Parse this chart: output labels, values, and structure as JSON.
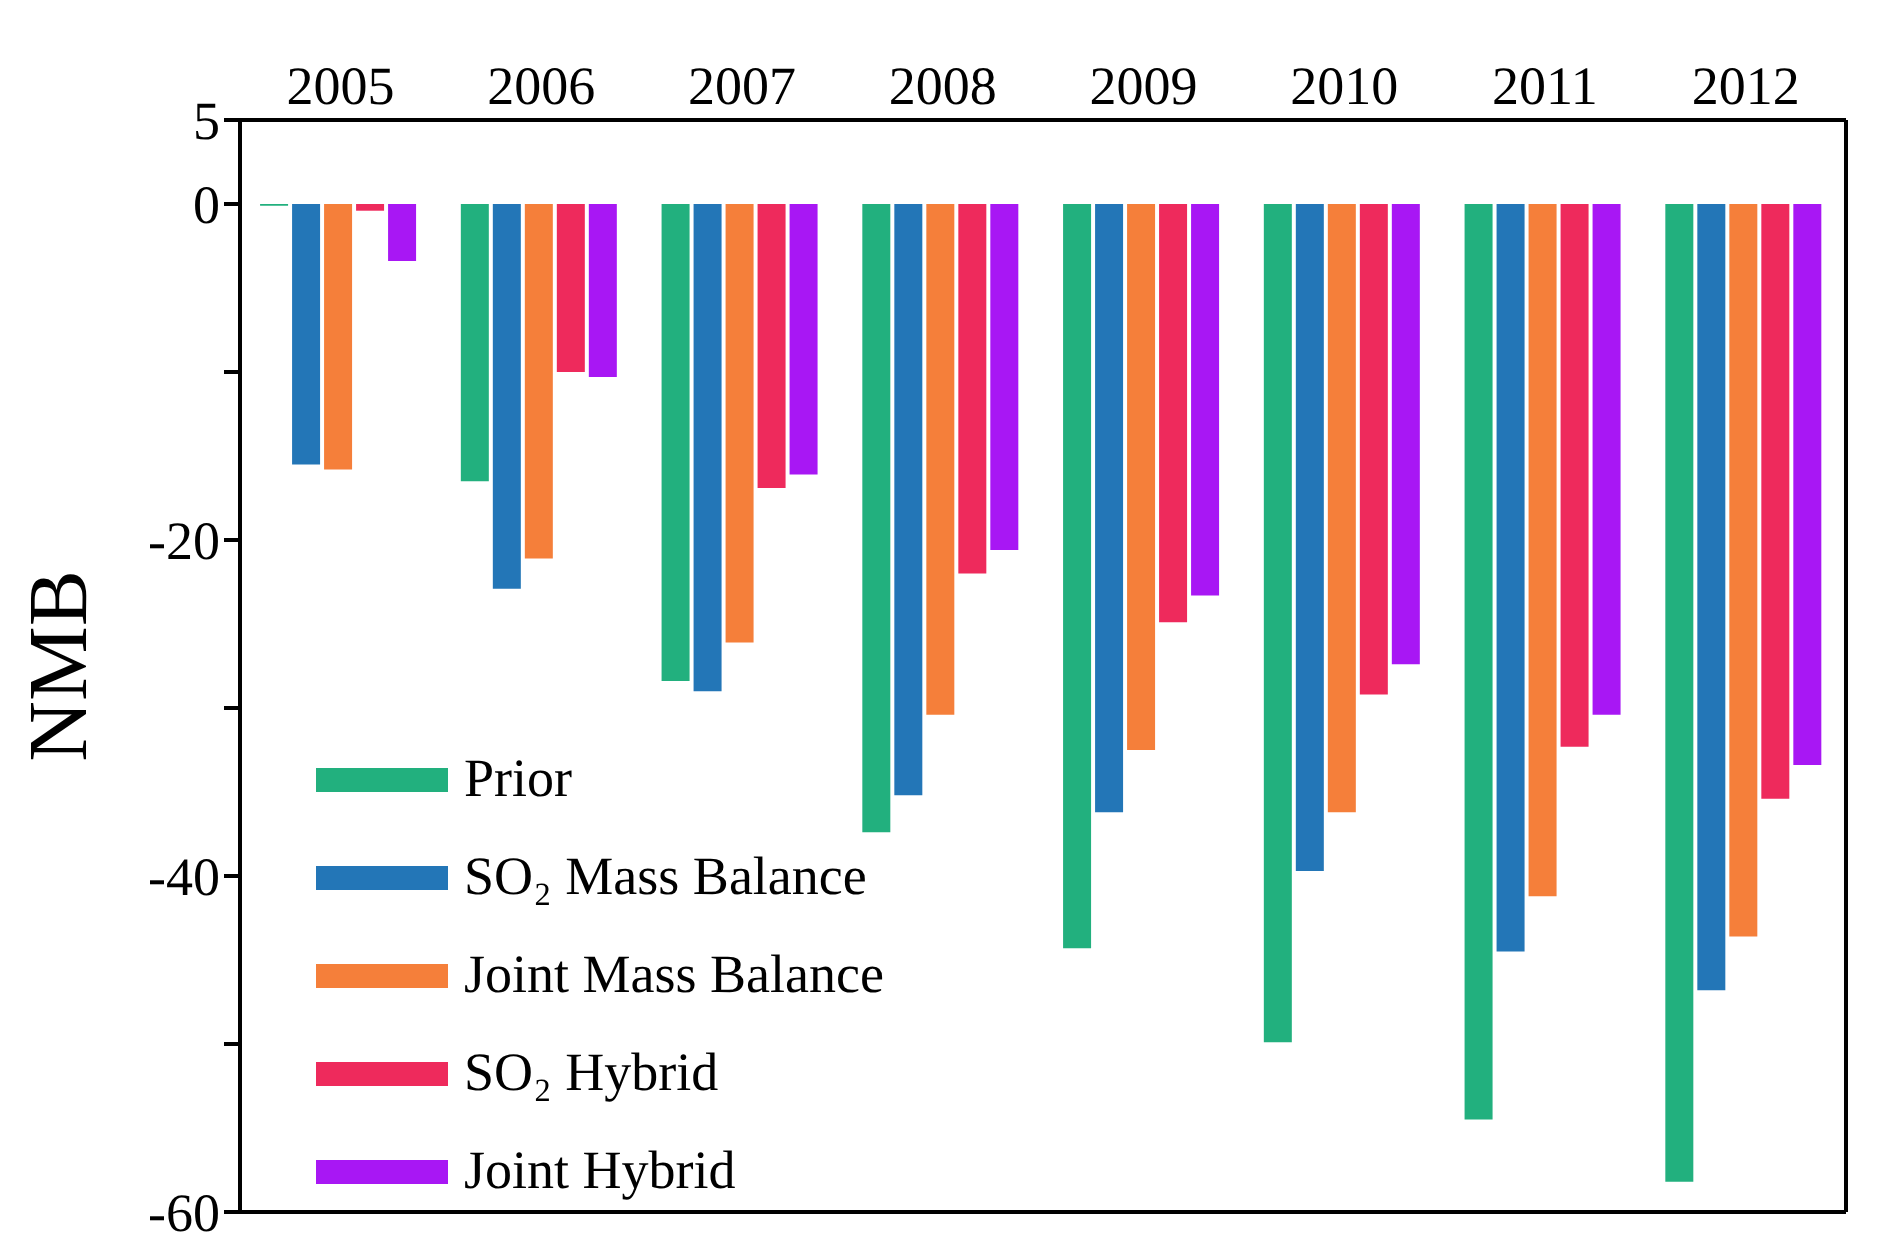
{
  "chart_data": {
    "type": "bar",
    "ylabel": "NMB",
    "categories": [
      "2005",
      "2006",
      "2007",
      "2008",
      "2009",
      "2010",
      "2011",
      "2012"
    ],
    "series": [
      {
        "name": "Prior",
        "color": "#22b07e",
        "values": [
          -0.1,
          -16.5,
          -28.4,
          -37.4,
          -44.3,
          -49.9,
          -54.5,
          -58.2
        ]
      },
      {
        "name": "SO₂ Mass Balance",
        "color": "#2376b7",
        "values": [
          -15.5,
          -22.9,
          -29.0,
          -35.2,
          -36.2,
          -39.7,
          -44.5,
          -46.8
        ]
      },
      {
        "name": "Joint Mass Balance",
        "color": "#f57f3a",
        "values": [
          -15.8,
          -21.1,
          -26.1,
          -30.4,
          -32.5,
          -36.2,
          -41.2,
          -43.6
        ]
      },
      {
        "name": "SO₂ Hybrid",
        "color": "#ee2a5c",
        "values": [
          -0.4,
          -10.0,
          -16.9,
          -22.0,
          -24.9,
          -29.2,
          -32.3,
          -35.4
        ]
      },
      {
        "name": "Joint Hybrid",
        "color": "#a817f4",
        "values": [
          -3.4,
          -10.3,
          -16.1,
          -20.6,
          -23.3,
          -27.4,
          -30.4,
          -33.4
        ]
      }
    ],
    "ylim": [
      -60,
      5
    ],
    "yticks": [
      5,
      0,
      {
        "value": -10,
        "label": null
      },
      -20,
      {
        "value": -30,
        "label": null
      },
      -40,
      {
        "value": -50,
        "label": null
      },
      -60
    ],
    "legend": "bottom left"
  }
}
